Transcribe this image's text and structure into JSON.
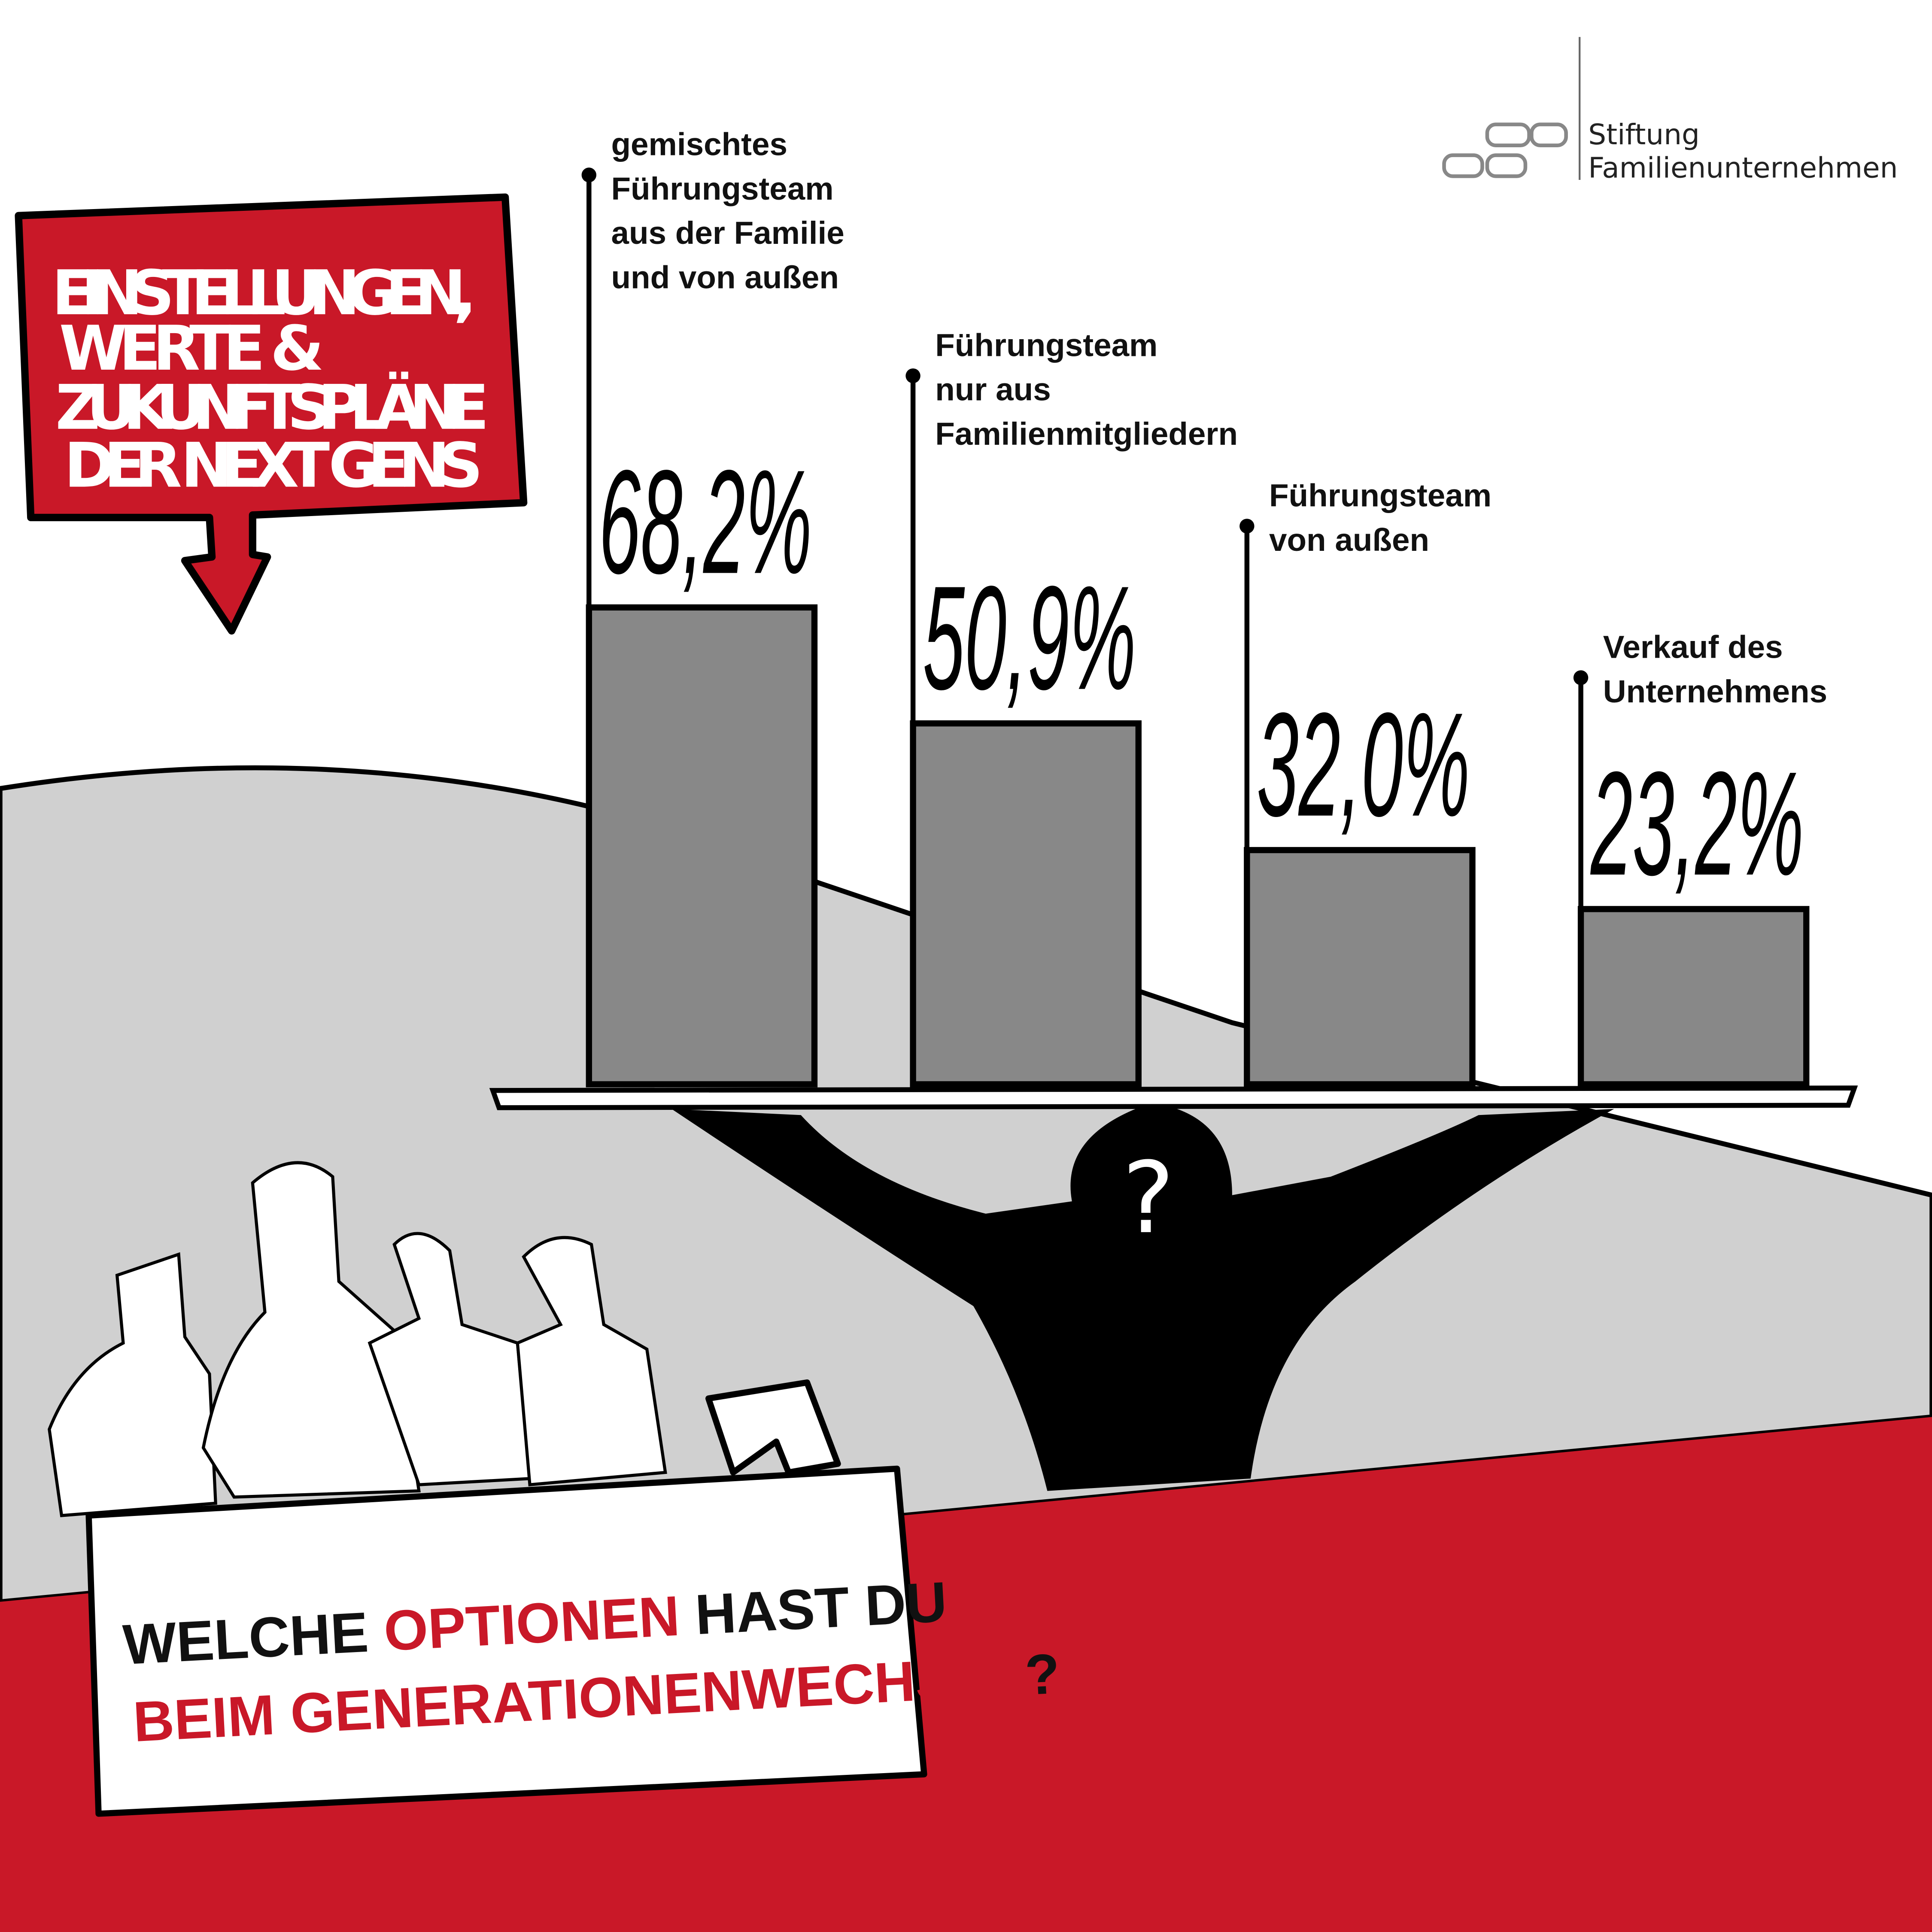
{
  "colors": {
    "red": "#c91828",
    "gray_bg": "#d0d0d0",
    "bar": "#888888",
    "ink": "#000000"
  },
  "logo": {
    "line1": "Stiftung",
    "line2": "Familienunternehmen"
  },
  "banner": {
    "lines": [
      "EINSTELLUNGEN,",
      "WERTE &",
      "ZUKUNFTSPLÄNE",
      "DER NEXT GENS"
    ]
  },
  "question": {
    "part1": "WELCHE ",
    "part2": "OPTIONEN",
    "part3": " HAST DU",
    "part4": "BEIM GENERATIONENWECHSEL",
    "part5": "?"
  },
  "head_icon": "question-mark",
  "chart_data": {
    "type": "bar",
    "categories": [
      [
        "gemischtes",
        "Führungsteam",
        "aus der Familie",
        "und von außen"
      ],
      [
        "Führungsteam",
        "nur aus",
        "Familienmitgliedern"
      ],
      [
        "Führungsteam",
        "von außen"
      ],
      [
        "Verkauf des",
        "Unternehmens"
      ]
    ],
    "values": [
      68.2,
      50.9,
      32.0,
      23.2
    ],
    "data_labels": [
      "68,2%",
      "50,9%",
      "32,0%",
      "23,2%"
    ],
    "unit": "%"
  }
}
